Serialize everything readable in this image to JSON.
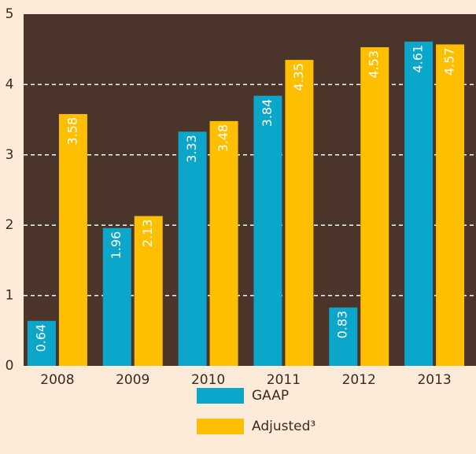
{
  "chart_data": {
    "type": "bar",
    "categories": [
      "2008",
      "2009",
      "2010",
      "2011",
      "2012",
      "2013"
    ],
    "series": [
      {
        "name": "GAAP",
        "color": "#0ba6c9",
        "values": [
          0.64,
          1.96,
          3.33,
          3.84,
          0.83,
          4.61
        ]
      },
      {
        "name": "Adjusted³",
        "color": "#fdbf00",
        "values": [
          3.58,
          2.13,
          3.48,
          4.35,
          4.53,
          4.57
        ]
      }
    ],
    "ylim": [
      0,
      5
    ],
    "yticks": [
      0,
      1,
      2,
      3,
      4,
      5
    ],
    "grid": true
  }
}
